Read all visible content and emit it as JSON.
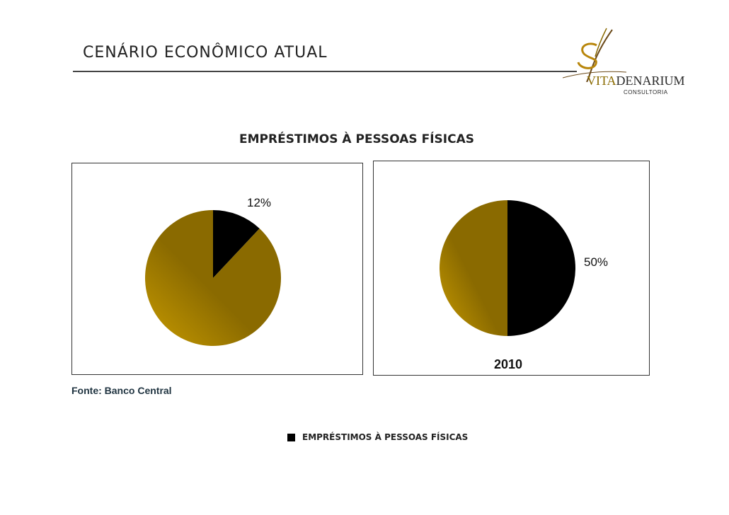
{
  "header": {
    "title": "CENÁRIO ECONÔMICO ATUAL"
  },
  "logo": {
    "word_accent": "VITA",
    "word_rest": "DENARIUM",
    "subtitle": "CONSULTORIA"
  },
  "chart_data": [
    {
      "type": "pie",
      "title": "EMPRÉSTIMOS À PESSOAS FÍSICAS",
      "slices": [
        {
          "name": "EMPRÉSTIMOS À PESSOAS FÍSICAS",
          "value": 12,
          "label": "12%",
          "color": "#000000"
        },
        {
          "name": "",
          "value": 88,
          "label": "",
          "color": "#8a6a00"
        }
      ],
      "legend": [
        "EMPRÉSTIMOS À PESSOAS FÍSICAS"
      ],
      "legend_position": "bottom"
    },
    {
      "type": "pie",
      "title": "EMPRÉSTIMOS À PESSOAS FÍSICAS",
      "category": "2010",
      "slices": [
        {
          "name": "EMPRÉSTIMOS À PESSOAS FÍSICAS",
          "value": 50,
          "label": "50%",
          "color": "#000000"
        },
        {
          "name": "",
          "value": 50,
          "label": "",
          "color": "#8a6a00"
        }
      ],
      "legend": [
        "EMPRÉSTIMOS À PESSOAS FÍSICAS"
      ],
      "legend_position": "bottom"
    }
  ],
  "chart_title": "EMPRÉSTIMOS À PESSOAS FÍSICAS",
  "source": "Fonte: Banco Central",
  "legend_label": "EMPRÉSTIMOS À PESSOAS FÍSICAS",
  "colors": {
    "loans": "#000000",
    "other": "#8a6a00",
    "other_highlight": "#c89b00"
  }
}
